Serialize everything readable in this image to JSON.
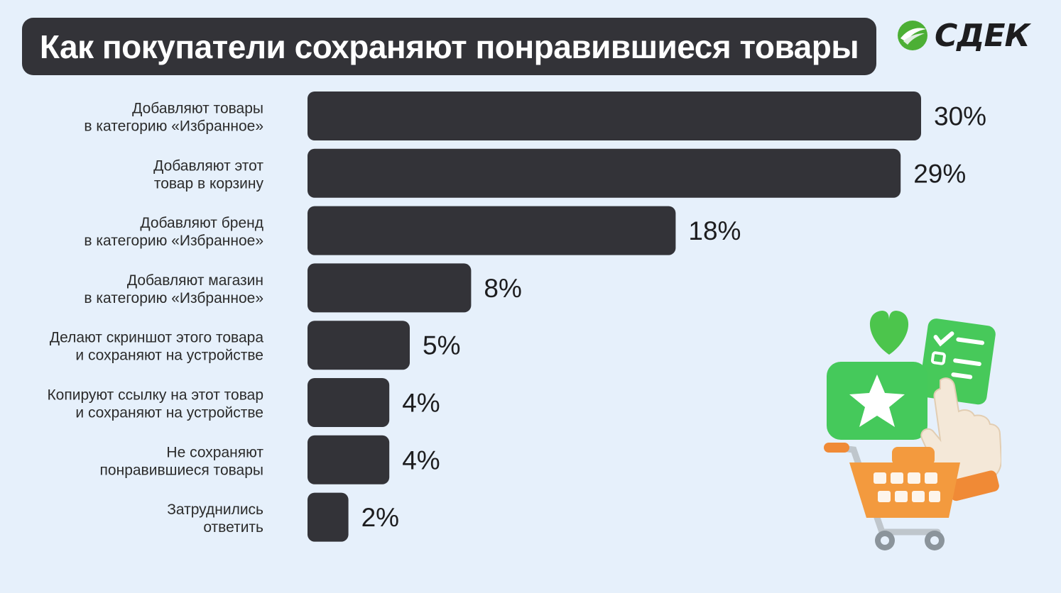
{
  "title": "Как покупатели сохраняют понравившиеся товары",
  "logo": {
    "text": "СДЕК",
    "color": "#1d1d1f",
    "accent": "#4caf35"
  },
  "colors": {
    "background": "#e6f0fb",
    "bar": "#333338",
    "title_box": "#333338"
  },
  "chart_data": {
    "type": "bar",
    "orientation": "horizontal",
    "categories": [
      [
        "Добавляют товары",
        "в категорию «Избранное»"
      ],
      [
        "Добавляют этот",
        "товар в корзину"
      ],
      [
        "Добавляют бренд",
        "в категорию «Избранное»"
      ],
      [
        "Добавляют магазин",
        "в категорию «Избранное»"
      ],
      [
        "Делают скриншот этого товара",
        "и сохраняют на устройстве"
      ],
      [
        "Копируют ссылку на этот товар",
        "и сохраняют на устройстве"
      ],
      [
        "Не сохраняют",
        "понравившиеся товары"
      ],
      [
        "Затруднились",
        "ответить"
      ]
    ],
    "values": [
      30,
      29,
      18,
      8,
      5,
      4,
      4,
      2
    ],
    "value_labels": [
      "30%",
      "29%",
      "18%",
      "8%",
      "5%",
      "4%",
      "4%",
      "2%"
    ],
    "unit": "%",
    "xlim": [
      0,
      30
    ],
    "grid": false,
    "legend": "none"
  },
  "illustration": {
    "icons": [
      "heart-icon",
      "checklist-icon",
      "star-icon",
      "pointing-hand-icon",
      "shopping-cart-icon"
    ]
  }
}
